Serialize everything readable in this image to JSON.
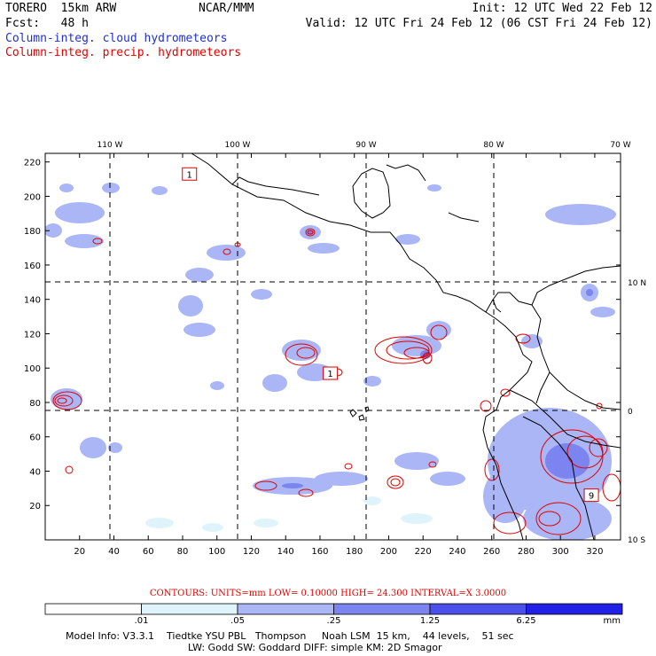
{
  "header": {
    "model_name": "TORERO  15km ARW",
    "center": "NCAR/MMM",
    "init": "Init: 12 UTC Wed 22 Feb 12",
    "fcst": "Fcst:   48 h",
    "valid": "Valid: 12 UTC Fri 24 Feb 12 (06 CST Fri 24 Feb 12)"
  },
  "legend": {
    "cloud": "Column-integ. cloud hydrometeors",
    "precip": "Column-integ. precip. hydrometeors",
    "cloud_color": "#1f2fd6",
    "precip_color": "#e00000"
  },
  "map": {
    "lon_labels": [
      "110 W",
      "100 W",
      "90 W",
      "80 W",
      "70 W"
    ],
    "lat_labels": [
      "10 N",
      "0",
      "10 S"
    ],
    "x_ticks": [
      "20",
      "40",
      "60",
      "80",
      "100",
      "120",
      "140",
      "160",
      "180",
      "200",
      "220",
      "240",
      "260",
      "280",
      "300",
      "320"
    ],
    "y_ticks": [
      "20",
      "40",
      "60",
      "80",
      "100",
      "120",
      "140",
      "160",
      "180",
      "200",
      "220"
    ],
    "box_labels": [
      {
        "text": "1",
        "x": 84,
        "y": 213
      },
      {
        "text": "1",
        "x": 166,
        "y": 97
      },
      {
        "text": "9",
        "x": 318,
        "y": 26
      }
    ]
  },
  "colorbar": {
    "contours_label": "CONTOURS:  UNITS=mm  LOW= 0.10000      HIGH=  24.300      INTERVAL=X  3.0000",
    "ticks": [
      ".01",
      ".05",
      ".25",
      "1.25",
      "6.25"
    ],
    "units": "mm",
    "colors": [
      "#ffffff",
      "#dff3fb",
      "#aab6f5",
      "#7b84ef",
      "#4b50ea",
      "#2020e6"
    ]
  },
  "footer": {
    "line1": "Model Info: V3.3.1    Tiedtke YSU PBL   Thompson     Noah LSM  15 km,    44 levels,    51 sec",
    "line2": "LW: Godd SW: Goddard DIFF: simple KM: 2D Smagor"
  }
}
